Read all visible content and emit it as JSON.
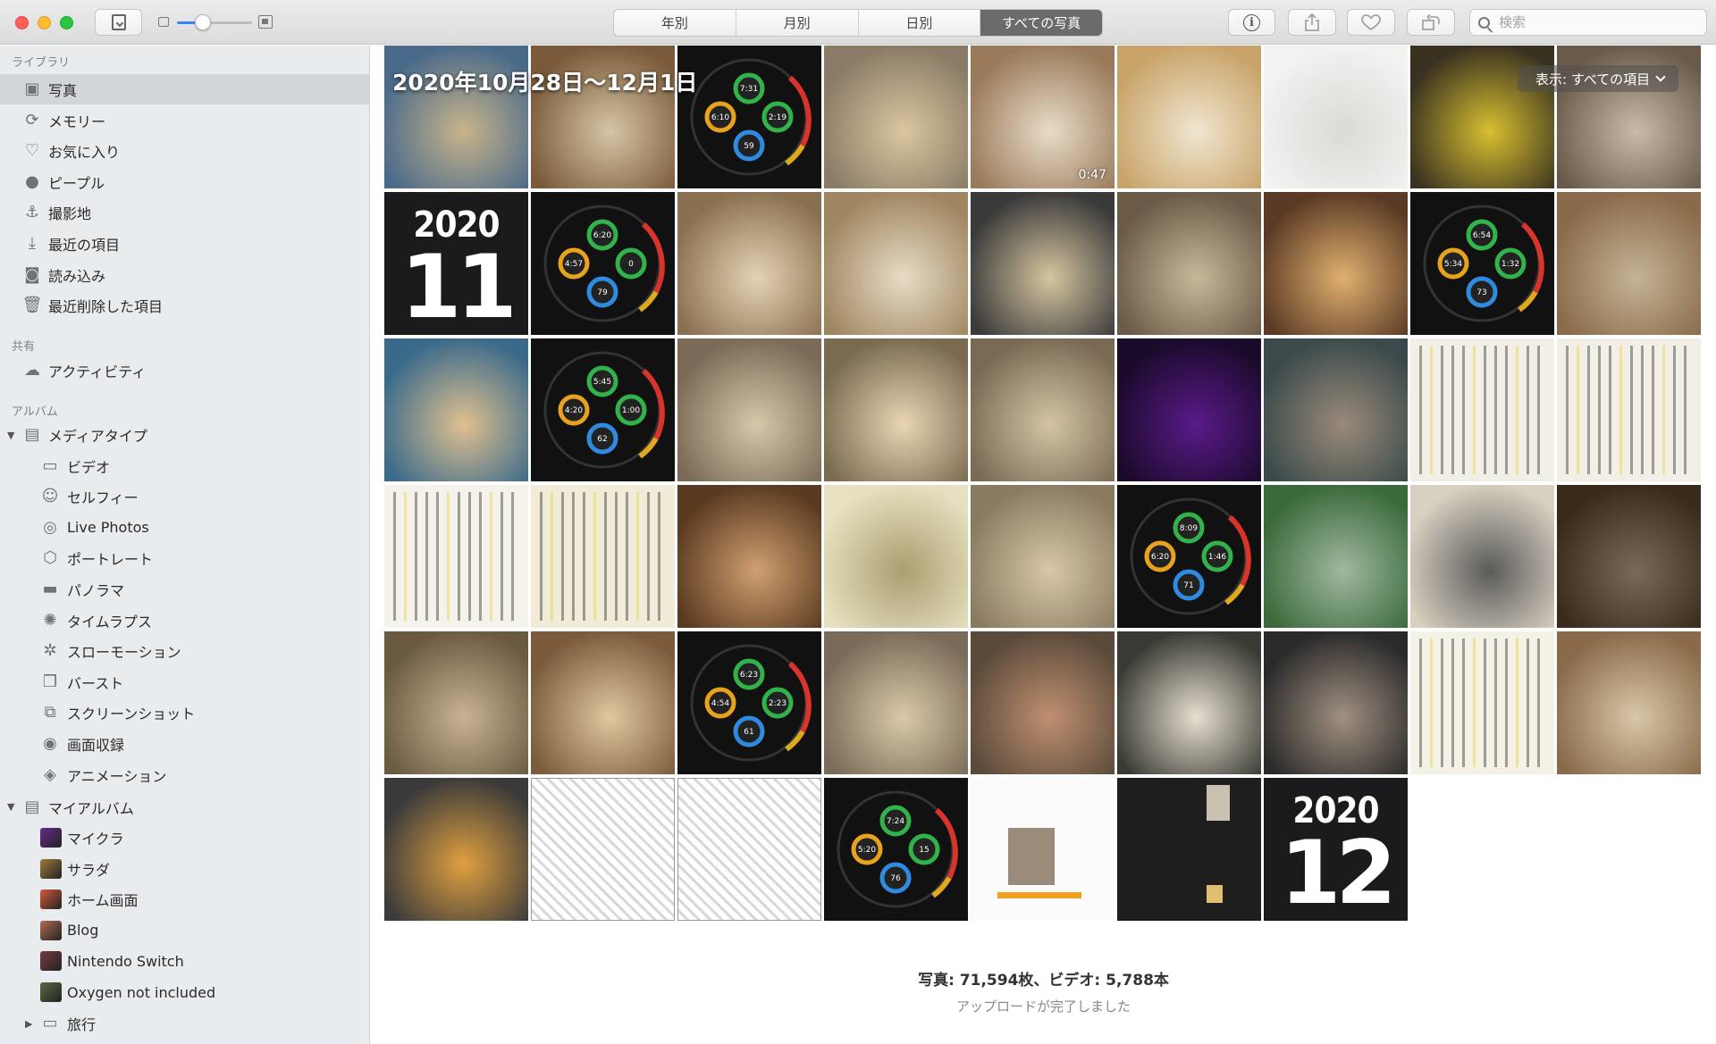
{
  "window": {
    "title": "写真"
  },
  "toolbar": {
    "tabs": [
      {
        "label": "年別",
        "active": false
      },
      {
        "label": "月別",
        "active": false
      },
      {
        "label": "日別",
        "active": false
      },
      {
        "label": "すべての写真",
        "active": true
      }
    ],
    "zoom_level": 0.34,
    "search_placeholder": "検索"
  },
  "sidebar": {
    "library_header": "ライブラリ",
    "library": [
      {
        "label": "写真",
        "icon": "photos-icon",
        "selected": true
      },
      {
        "label": "メモリー",
        "icon": "memories-icon"
      },
      {
        "label": "お気に入り",
        "icon": "heart-icon"
      },
      {
        "label": "ピープル",
        "icon": "person-icon"
      },
      {
        "label": "撮影地",
        "icon": "pin-icon"
      },
      {
        "label": "最近の項目",
        "icon": "import-icon"
      },
      {
        "label": "読み込み",
        "icon": "camera-icon"
      },
      {
        "label": "最近削除した項目",
        "icon": "trash-icon"
      }
    ],
    "shared_header": "共有",
    "shared": [
      {
        "label": "アクティビティ",
        "icon": "cloud-icon"
      }
    ],
    "albums_header": "アルバム",
    "media_types_label": "メディアタイプ",
    "media_types": [
      {
        "label": "ビデオ",
        "icon": "video-icon"
      },
      {
        "label": "セルフィー",
        "icon": "selfie-icon"
      },
      {
        "label": "Live Photos",
        "icon": "live-photo-icon"
      },
      {
        "label": "ポートレート",
        "icon": "cube-icon"
      },
      {
        "label": "パノラマ",
        "icon": "panorama-icon"
      },
      {
        "label": "タイムラプス",
        "icon": "timelapse-icon"
      },
      {
        "label": "スローモーション",
        "icon": "slowmo-icon"
      },
      {
        "label": "バースト",
        "icon": "burst-icon"
      },
      {
        "label": "スクリーンショット",
        "icon": "screenshot-icon"
      },
      {
        "label": "画面収録",
        "icon": "record-icon"
      },
      {
        "label": "アニメーション",
        "icon": "animation-icon"
      }
    ],
    "my_albums_label": "マイアルバム",
    "my_albums": [
      {
        "label": "マイクラ",
        "color": "#6a2a8a"
      },
      {
        "label": "サラダ",
        "color": "#a07b3b"
      },
      {
        "label": "ホーム画面",
        "color": "#d35a3a"
      },
      {
        "label": "Blog",
        "color": "#b06a50"
      },
      {
        "label": "Nintendo Switch",
        "color": "#7a3a44"
      },
      {
        "label": "Oxygen not included",
        "color": "#5a6a42"
      }
    ],
    "folder_label": "旅行"
  },
  "main": {
    "date_range": "2020年10月28日〜12月1日",
    "filter_label": "表示: すべての項目",
    "video_duration": "0:47",
    "year_cards": [
      {
        "year": "2020",
        "month": "11"
      },
      {
        "year": "2020",
        "month": "12"
      }
    ],
    "activity_rings": [
      [
        "7:31",
        "6:10",
        "2:19",
        "59"
      ],
      [
        "6:20",
        "4:57",
        "0",
        "79"
      ],
      [
        "6:54",
        "5:34",
        "1:32",
        "73"
      ],
      [
        "5:45",
        "4:20",
        "1:00",
        "62"
      ],
      [
        "8:09",
        "6:20",
        "1:46",
        "71"
      ],
      [
        "6:23",
        "4:54",
        "2:23",
        "61"
      ],
      [
        "7:24",
        "5:20",
        "15",
        "76"
      ]
    ],
    "count_text": "写真: 71,594枚、ビデオ: 5,788本",
    "status_text": "アップロードが完了しました"
  }
}
